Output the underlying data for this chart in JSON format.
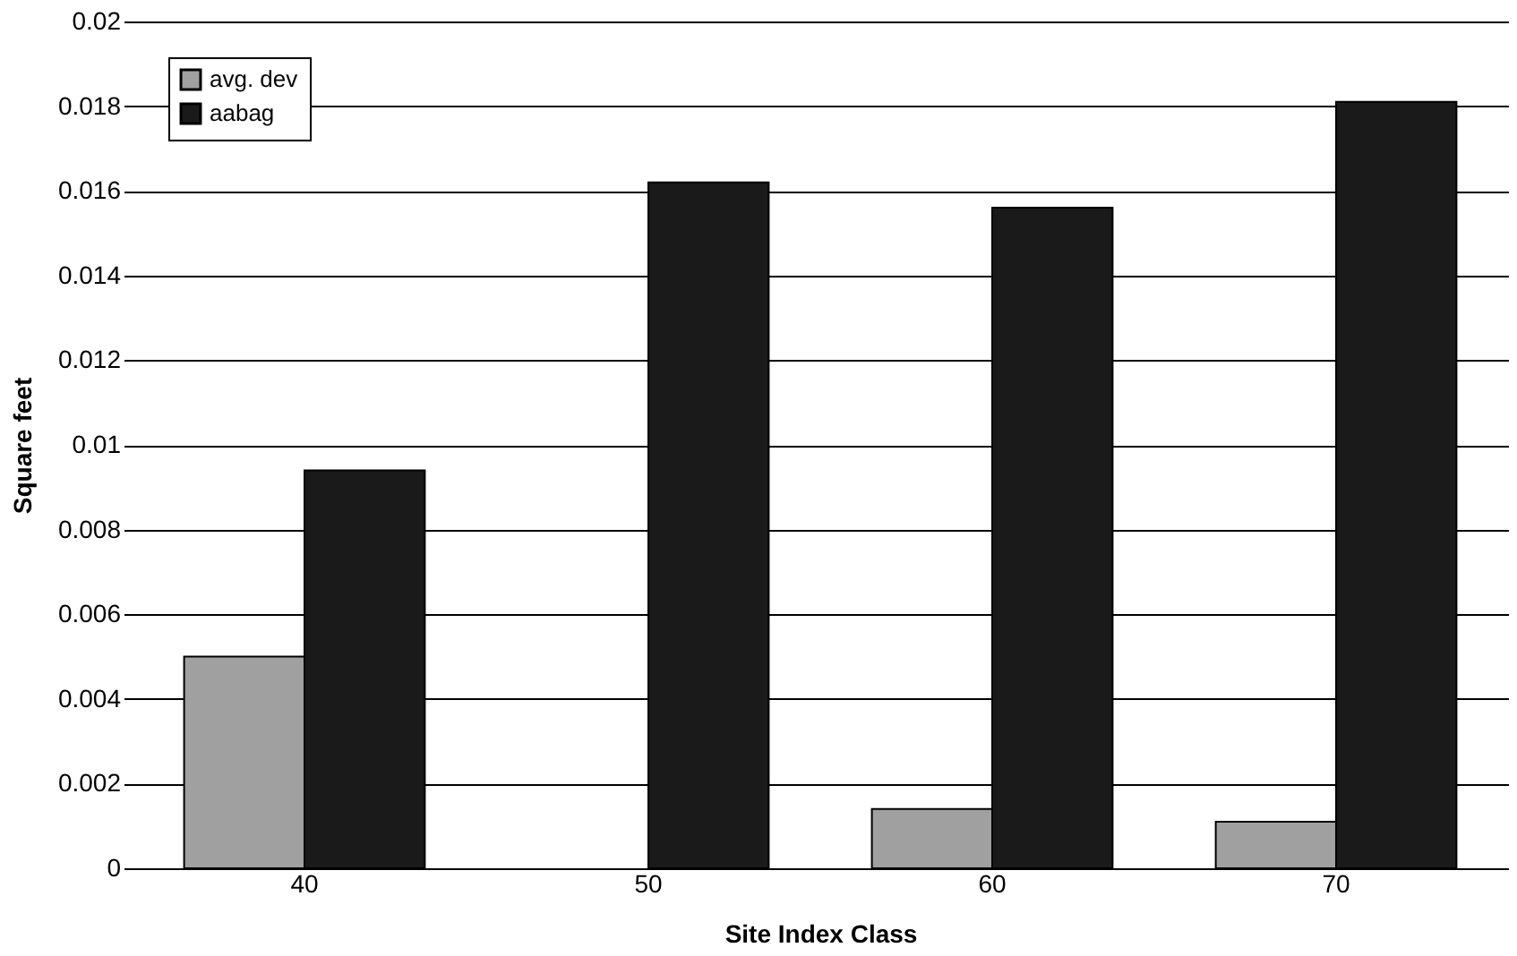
{
  "chart_data": {
    "type": "bar",
    "xlabel": "Site Index Class",
    "ylabel": "Square feet",
    "categories": [
      "40",
      "50",
      "60",
      "70"
    ],
    "series": [
      {
        "name": "avg. dev",
        "color": "#a0a0a0",
        "values": [
          0.005,
          0,
          0.0014,
          0.0011
        ]
      },
      {
        "name": "aabag",
        "color": "#1a1a1a",
        "values": [
          0.0094,
          0.0162,
          0.0156,
          0.0181
        ]
      }
    ],
    "ylim": [
      0,
      0.02
    ],
    "yticks": [
      0,
      0.002,
      0.004,
      0.006,
      0.008,
      0.01,
      0.012,
      0.014,
      0.016,
      0.018,
      0.02
    ],
    "grid": "y",
    "legend": "top left"
  }
}
